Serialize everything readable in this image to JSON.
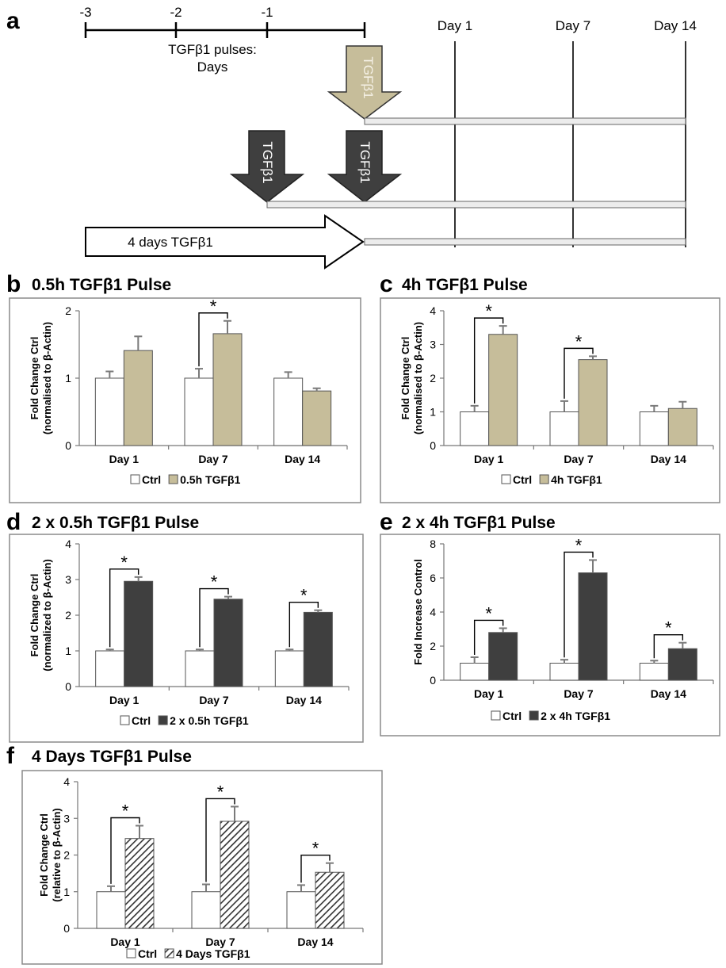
{
  "timeline": {
    "panel_letter": "a",
    "ticks": [
      "-3",
      "-2",
      "-1"
    ],
    "caption_line1": "TGFβ1 pulses:",
    "caption_line2": "Days",
    "days": [
      "Day 1",
      "Day 7",
      "Day 14"
    ],
    "arrow_label": "TGFβ1",
    "long_arrow_label": "4 days  TGFβ1",
    "colors": {
      "tan": "#c6bd9a",
      "dark": "#3f3f3f"
    }
  },
  "chart_data": [
    {
      "id": "b",
      "type": "bar",
      "panel_letter": "b",
      "title": "0.5h TGFβ1 Pulse",
      "ylabel_line1": "Fold Change Ctrl",
      "ylabel_line2": "(normalised to β-Actin)",
      "ylim": [
        0,
        2
      ],
      "yticks": [
        "0",
        "1",
        "2"
      ],
      "categories": [
        "Day 1",
        "Day 7",
        "Day 14"
      ],
      "series": [
        {
          "name": "Ctrl",
          "fill": "#ffffff",
          "values": [
            1.0,
            1.0,
            1.0
          ],
          "errors": [
            0.1,
            0.14,
            0.09
          ]
        },
        {
          "name": "0.5h TGFβ1",
          "fill": "#c6bd9a",
          "values": [
            1.41,
            1.66,
            0.81
          ],
          "errors": [
            0.21,
            0.19,
            0.04
          ]
        }
      ],
      "significance": [
        false,
        true,
        false
      ],
      "legend": "bottom"
    },
    {
      "id": "c",
      "type": "bar",
      "panel_letter": "c",
      "title": "4h TGFβ1 Pulse",
      "ylabel_line1": "Fold Change Ctrl",
      "ylabel_line2": "(normalised to β-Actin)",
      "ylim": [
        0,
        4
      ],
      "yticks": [
        "0",
        "1",
        "2",
        "3",
        "4"
      ],
      "categories": [
        "Day 1",
        "Day 7",
        "Day 14"
      ],
      "series": [
        {
          "name": "Ctrl",
          "fill": "#ffffff",
          "values": [
            1.0,
            1.0,
            1.0
          ],
          "errors": [
            0.18,
            0.32,
            0.18
          ]
        },
        {
          "name": "4h TGFβ1",
          "fill": "#c6bd9a",
          "values": [
            3.3,
            2.55,
            1.1
          ],
          "errors": [
            0.25,
            0.1,
            0.2
          ]
        }
      ],
      "significance": [
        true,
        true,
        false
      ],
      "legend": "bottom"
    },
    {
      "id": "d",
      "type": "bar",
      "panel_letter": "d",
      "title": "2 x 0.5h TGFβ1 Pulse",
      "ylabel_line1": "Fold Change Ctrl",
      "ylabel_line2": "(normalized to β-Actin)",
      "ylim": [
        0,
        4
      ],
      "yticks": [
        "0",
        "1",
        "2",
        "3",
        "4"
      ],
      "categories": [
        "Day 1",
        "Day 7",
        "Day 14"
      ],
      "series": [
        {
          "name": "Ctrl",
          "fill": "#ffffff",
          "values": [
            1.0,
            1.0,
            1.0
          ],
          "errors": [
            0.04,
            0.04,
            0.04
          ]
        },
        {
          "name": "2 x 0.5h TGFβ1",
          "fill": "#3f3f3f",
          "values": [
            2.95,
            2.45,
            2.08
          ],
          "errors": [
            0.12,
            0.07,
            0.06
          ]
        }
      ],
      "significance": [
        true,
        true,
        true
      ],
      "legend": "bottom"
    },
    {
      "id": "e",
      "type": "bar",
      "panel_letter": "e",
      "title": "2 x 4h TGFβ1 Pulse",
      "ylabel_line1": "Fold Increase Control",
      "ylabel_line2": "",
      "ylim": [
        0,
        8
      ],
      "yticks": [
        "0",
        "2",
        "4",
        "6",
        "8"
      ],
      "categories": [
        "Day 1",
        "Day 7",
        "Day 14"
      ],
      "series": [
        {
          "name": "Ctrl",
          "fill": "#ffffff",
          "values": [
            1.0,
            1.0,
            1.0
          ],
          "errors": [
            0.35,
            0.2,
            0.15
          ]
        },
        {
          "name": "2 x 4h TGFβ1",
          "fill": "#3f3f3f",
          "values": [
            2.8,
            6.3,
            1.85
          ],
          "errors": [
            0.25,
            0.75,
            0.35
          ]
        }
      ],
      "significance": [
        true,
        true,
        true
      ],
      "legend": "bottom"
    },
    {
      "id": "f",
      "type": "bar",
      "panel_letter": "f",
      "title": "4 Days TGFβ1 Pulse",
      "ylabel_line1": "Fold Change Ctrl",
      "ylabel_line2": "(relative to β-Actin)",
      "ylim": [
        0,
        4
      ],
      "yticks": [
        "0",
        "1",
        "2",
        "3",
        "4"
      ],
      "categories": [
        "Day 1",
        "Day 7",
        "Day 14"
      ],
      "series": [
        {
          "name": "Ctrl",
          "fill": "#ffffff",
          "values": [
            1.0,
            1.0,
            1.0
          ],
          "errors": [
            0.15,
            0.2,
            0.18
          ]
        },
        {
          "name": "4 Days TGFβ1",
          "fill": "hatch",
          "values": [
            2.45,
            2.92,
            1.53
          ],
          "errors": [
            0.35,
            0.4,
            0.25
          ]
        }
      ],
      "significance": [
        true,
        true,
        true
      ],
      "legend": "bottom"
    }
  ]
}
